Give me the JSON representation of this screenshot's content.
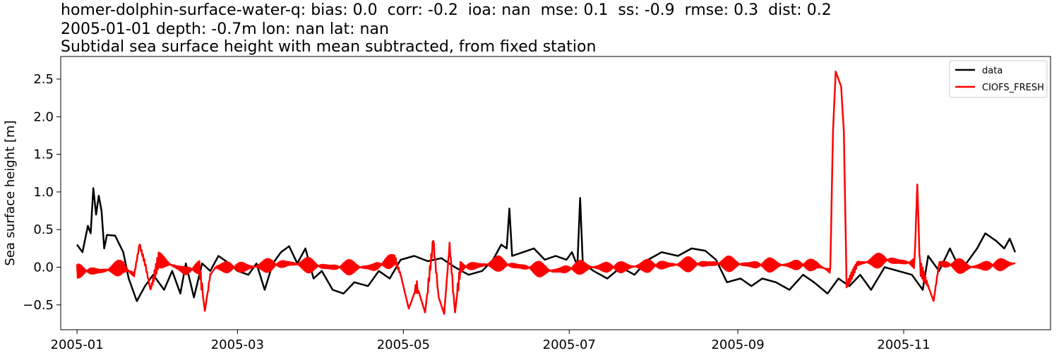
{
  "header": {
    "line1": "homer-dolphin-surface-water-q: bias: 0.0  corr: -0.2  ioa: nan  mse: 0.1  ss: -0.9  rmse: 0.3  dist: 0.2",
    "line2": "2005-01-01 depth: -0.7m lon: nan lat: nan",
    "line3": "Subtidal sea surface height with mean subtracted, from fixed station"
  },
  "chart_data": {
    "type": "line",
    "xlabel": "",
    "ylabel": "Sea surface height [m]",
    "xlim": [
      "2004-12-26",
      "2005-12-25"
    ],
    "ylim": [
      -0.83,
      2.8
    ],
    "x_ticks": [
      "2005-01",
      "2005-03",
      "2005-05",
      "2005-07",
      "2005-09",
      "2005-11"
    ],
    "y_ticks": [
      "−0.5",
      "0.0",
      "0.5",
      "1.0",
      "1.5",
      "2.0",
      "2.5"
    ],
    "y_tick_values": [
      -0.5,
      0.0,
      0.5,
      1.0,
      1.5,
      2.0,
      2.5
    ],
    "legend_position": "top-right",
    "series": [
      {
        "name": "data",
        "color": "#000000",
        "points": [
          [
            "2005-01-01",
            0.3
          ],
          [
            "2005-01-03",
            0.2
          ],
          [
            "2005-01-05",
            0.55
          ],
          [
            "2005-01-06",
            0.45
          ],
          [
            "2005-01-07",
            1.05
          ],
          [
            "2005-01-08",
            0.7
          ],
          [
            "2005-01-09",
            0.95
          ],
          [
            "2005-01-10",
            0.75
          ],
          [
            "2005-01-11",
            0.25
          ],
          [
            "2005-01-12",
            0.43
          ],
          [
            "2005-01-15",
            0.42
          ],
          [
            "2005-01-18",
            0.2
          ],
          [
            "2005-01-20",
            -0.15
          ],
          [
            "2005-01-23",
            -0.45
          ],
          [
            "2005-01-26",
            -0.25
          ],
          [
            "2005-01-29",
            -0.1
          ],
          [
            "2005-02-02",
            -0.3
          ],
          [
            "2005-02-05",
            -0.05
          ],
          [
            "2005-02-08",
            -0.35
          ],
          [
            "2005-02-10",
            0.05
          ],
          [
            "2005-02-13",
            -0.4
          ],
          [
            "2005-02-16",
            0.05
          ],
          [
            "2005-02-19",
            -0.05
          ],
          [
            "2005-02-22",
            0.15
          ],
          [
            "2005-02-26",
            0.05
          ],
          [
            "2005-03-01",
            -0.05
          ],
          [
            "2005-03-05",
            -0.1
          ],
          [
            "2005-03-08",
            0.05
          ],
          [
            "2005-03-11",
            -0.3
          ],
          [
            "2005-03-14",
            0.05
          ],
          [
            "2005-03-17",
            0.2
          ],
          [
            "2005-03-20",
            0.28
          ],
          [
            "2005-03-23",
            0.05
          ],
          [
            "2005-03-26",
            0.25
          ],
          [
            "2005-03-29",
            -0.15
          ],
          [
            "2005-04-01",
            -0.05
          ],
          [
            "2005-04-05",
            -0.3
          ],
          [
            "2005-04-09",
            -0.35
          ],
          [
            "2005-04-13",
            -0.2
          ],
          [
            "2005-04-18",
            -0.25
          ],
          [
            "2005-04-22",
            -0.05
          ],
          [
            "2005-04-26",
            -0.15
          ],
          [
            "2005-04-30",
            0.1
          ],
          [
            "2005-05-05",
            0.15
          ],
          [
            "2005-05-10",
            0.08
          ],
          [
            "2005-05-15",
            0.12
          ],
          [
            "2005-05-20",
            0.0
          ],
          [
            "2005-05-25",
            -0.1
          ],
          [
            "2005-05-30",
            -0.05
          ],
          [
            "2005-06-03",
            0.1
          ],
          [
            "2005-06-06",
            0.3
          ],
          [
            "2005-06-08",
            0.25
          ],
          [
            "2005-06-09",
            0.78
          ],
          [
            "2005-06-10",
            0.15
          ],
          [
            "2005-06-14",
            0.2
          ],
          [
            "2005-06-18",
            0.25
          ],
          [
            "2005-06-22",
            0.1
          ],
          [
            "2005-06-26",
            0.15
          ],
          [
            "2005-06-30",
            0.1
          ],
          [
            "2005-07-02",
            0.2
          ],
          [
            "2005-07-04",
            0.02
          ],
          [
            "2005-07-05",
            0.92
          ],
          [
            "2005-07-06",
            0.05
          ],
          [
            "2005-07-10",
            -0.05
          ],
          [
            "2005-07-15",
            -0.15
          ],
          [
            "2005-07-20",
            0.0
          ],
          [
            "2005-07-25",
            -0.1
          ],
          [
            "2005-07-30",
            0.1
          ],
          [
            "2005-08-04",
            0.2
          ],
          [
            "2005-08-10",
            0.15
          ],
          [
            "2005-08-15",
            0.25
          ],
          [
            "2005-08-20",
            0.22
          ],
          [
            "2005-08-24",
            0.1
          ],
          [
            "2005-08-28",
            -0.2
          ],
          [
            "2005-09-02",
            -0.15
          ],
          [
            "2005-09-06",
            -0.25
          ],
          [
            "2005-09-10",
            -0.15
          ],
          [
            "2005-09-15",
            -0.2
          ],
          [
            "2005-09-20",
            -0.3
          ],
          [
            "2005-09-25",
            -0.1
          ],
          [
            "2005-09-29",
            -0.2
          ],
          [
            "2005-10-04",
            -0.35
          ],
          [
            "2005-10-08",
            -0.15
          ],
          [
            "2005-10-12",
            -0.25
          ],
          [
            "2005-10-16",
            -0.1
          ],
          [
            "2005-10-20",
            -0.3
          ],
          [
            "2005-10-25",
            0.0
          ],
          [
            "2005-10-30",
            -0.05
          ],
          [
            "2005-11-04",
            -0.1
          ],
          [
            "2005-11-08",
            -0.3
          ],
          [
            "2005-11-10",
            0.15
          ],
          [
            "2005-11-14",
            -0.05
          ],
          [
            "2005-11-18",
            0.25
          ],
          [
            "2005-11-20",
            0.1
          ],
          [
            "2005-11-24",
            0.05
          ],
          [
            "2005-11-28",
            0.25
          ],
          [
            "2005-12-01",
            0.45
          ],
          [
            "2005-12-05",
            0.35
          ],
          [
            "2005-12-08",
            0.25
          ],
          [
            "2005-12-10",
            0.38
          ],
          [
            "2005-12-12",
            0.2
          ]
        ]
      },
      {
        "name": "CIOFS_FRESH",
        "color": "#ff0000",
        "baseline_oscillation": 0.1,
        "points": [
          [
            "2005-01-01",
            -0.05
          ],
          [
            "2005-01-10",
            -0.05
          ],
          [
            "2005-01-18",
            0.0
          ],
          [
            "2005-01-22",
            -0.1
          ],
          [
            "2005-01-24",
            0.3
          ],
          [
            "2005-01-26",
            0.05
          ],
          [
            "2005-01-28",
            -0.3
          ],
          [
            "2005-01-31",
            0.1
          ],
          [
            "2005-02-10",
            -0.05
          ],
          [
            "2005-02-15",
            0.0
          ],
          [
            "2005-02-17",
            -0.58
          ],
          [
            "2005-02-19",
            -0.1
          ],
          [
            "2005-02-21",
            0.0
          ],
          [
            "2005-03-05",
            0.0
          ],
          [
            "2005-03-20",
            0.05
          ],
          [
            "2005-04-05",
            0.0
          ],
          [
            "2005-04-20",
            0.0
          ],
          [
            "2005-04-28",
            0.1
          ],
          [
            "2005-04-30",
            -0.1
          ],
          [
            "2005-05-03",
            -0.55
          ],
          [
            "2005-05-06",
            -0.25
          ],
          [
            "2005-05-09",
            -0.6
          ],
          [
            "2005-05-12",
            0.35
          ],
          [
            "2005-05-14",
            -0.4
          ],
          [
            "2005-05-16",
            -0.62
          ],
          [
            "2005-05-18",
            0.3
          ],
          [
            "2005-05-20",
            -0.6
          ],
          [
            "2005-05-22",
            0.0
          ],
          [
            "2005-06-05",
            0.05
          ],
          [
            "2005-06-15",
            0.0
          ],
          [
            "2005-06-25",
            -0.05
          ],
          [
            "2005-07-05",
            0.0
          ],
          [
            "2005-07-20",
            0.0
          ],
          [
            "2005-08-05",
            0.03
          ],
          [
            "2005-08-25",
            0.05
          ],
          [
            "2005-09-10",
            0.03
          ],
          [
            "2005-09-30",
            0.03
          ],
          [
            "2005-10-05",
            -0.05
          ],
          [
            "2005-10-06",
            1.8
          ],
          [
            "2005-10-07",
            2.6
          ],
          [
            "2005-10-09",
            2.4
          ],
          [
            "2005-10-10",
            1.8
          ],
          [
            "2005-10-11",
            -0.25
          ],
          [
            "2005-10-15",
            0.05
          ],
          [
            "2005-10-25",
            0.1
          ],
          [
            "2005-11-05",
            0.05
          ],
          [
            "2005-11-06",
            1.1
          ],
          [
            "2005-11-07",
            0.0
          ],
          [
            "2005-11-10",
            -0.25
          ],
          [
            "2005-11-12",
            -0.45
          ],
          [
            "2005-11-14",
            0.05
          ],
          [
            "2005-11-25",
            0.0
          ],
          [
            "2005-12-12",
            0.05
          ]
        ]
      }
    ]
  }
}
